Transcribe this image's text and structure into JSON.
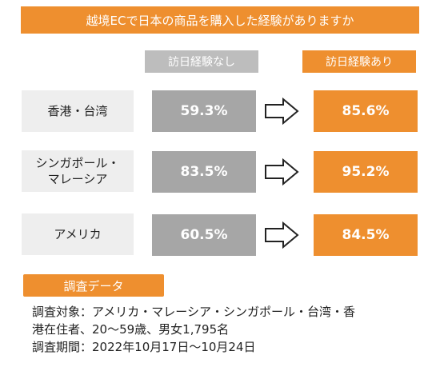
{
  "title": "越境ECで日本の商品を購入した経験がありますか",
  "columns": {
    "before": "訪日経験なし",
    "after": "訪日経験あり"
  },
  "rows": [
    {
      "region_line1": "香港・台湾",
      "region_line2": "",
      "before": "59.3%",
      "after": "85.6%"
    },
    {
      "region_line1": "シンガポール・",
      "region_line2": "マレーシア",
      "before": "83.5%",
      "after": "95.2%"
    },
    {
      "region_line1": "アメリカ",
      "region_line2": "",
      "before": "60.5%",
      "after": "84.5%"
    }
  ],
  "survey": {
    "badge": "調査データ",
    "line1": "調査対象：アメリカ・マレーシア・シンガポール・台湾・香",
    "line2": "港在住者、20～59歳、男女1,795名",
    "line3": "調査期間：2022年10月17日～10月24日"
  },
  "colors": {
    "accent": "#ee8f2f",
    "gray_header": "#bdbdbd",
    "gray_value": "#a6a6a6",
    "region_bg": "#eeeeee"
  },
  "icons": {
    "arrow": "right-arrow-icon"
  }
}
